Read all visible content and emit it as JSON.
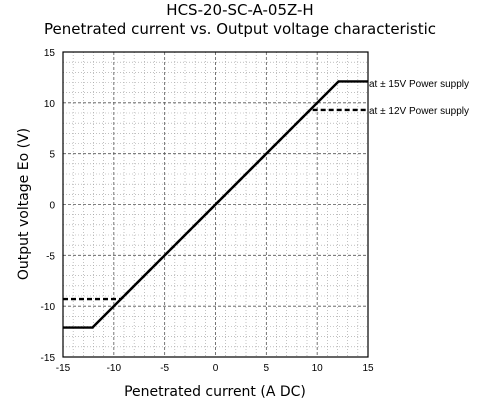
{
  "chart_data": {
    "type": "line",
    "title": "HCS-20-SC-A-05Z-H",
    "subtitle": "Penetrated current vs. Output voltage characteristic",
    "xlabel": "Penetrated current (A DC)",
    "ylabel": "Output voltage Eo (V)",
    "xlim": [
      -15,
      15
    ],
    "ylim": [
      -15,
      15
    ],
    "x_ticks": [
      "-15",
      "-10",
      "-5",
      "0",
      "5",
      "10",
      "15"
    ],
    "y_ticks": [
      "15",
      "10",
      "5",
      "0",
      "-5",
      "-10",
      "-15"
    ],
    "grid": true,
    "minor_grid": true,
    "series": [
      {
        "name": "at ± 15V Power supply",
        "style": "solid",
        "color": "#000000",
        "x": [
          -15,
          -12.1,
          12.1,
          15
        ],
        "y": [
          -12.1,
          -12.1,
          12.1,
          12.1
        ]
      },
      {
        "name": "at ± 12V Power supply",
        "style": "dashed",
        "color": "#000000",
        "x": [
          -15,
          -9.3,
          9.3,
          15
        ],
        "y": [
          -9.3,
          -9.3,
          9.3,
          9.3
        ]
      }
    ],
    "annotations": [
      "at ± 15V Power supply",
      "at ± 12V Power supply"
    ]
  }
}
